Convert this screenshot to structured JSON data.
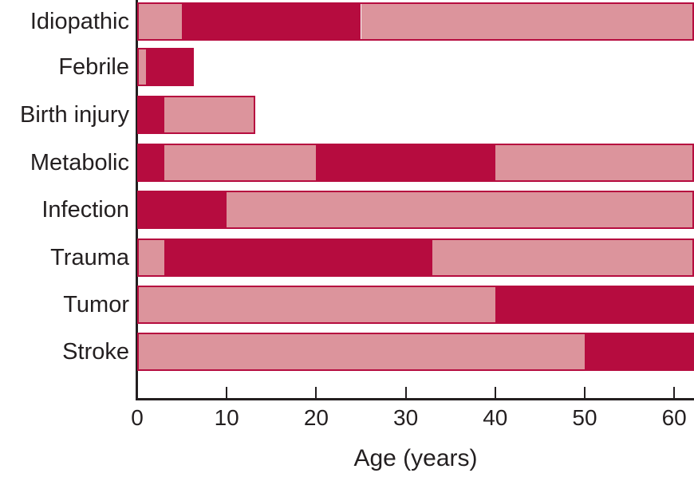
{
  "chart_data": {
    "type": "bar",
    "subtype": "horizontal-stacked-segments",
    "title": "",
    "xlabel": "Age (years)",
    "ylabel": "",
    "xlim": [
      0,
      62.2
    ],
    "xticks": [
      0,
      10,
      20,
      30,
      40,
      50,
      60
    ],
    "grid": false,
    "legend_position": "none",
    "colors": {
      "dark": "#B60C3F",
      "light": "#DC949C",
      "axis": "#231F20",
      "text": "#231F20"
    },
    "categories": [
      "Idiopathic",
      "Febrile",
      "Birth injury",
      "Metabolic",
      "Infection",
      "Trauma",
      "Tumor",
      "Stroke"
    ],
    "bars": [
      {
        "category": "Idiopathic",
        "segments": [
          {
            "from": 0,
            "to": 5,
            "color": "light"
          },
          {
            "from": 5,
            "to": 25,
            "color": "dark"
          },
          {
            "from": 25,
            "to": 62.2,
            "color": "light"
          }
        ]
      },
      {
        "category": "Febrile",
        "segments": [
          {
            "from": 0,
            "to": 1,
            "color": "light"
          },
          {
            "from": 1,
            "to": 6.3,
            "color": "dark"
          }
        ]
      },
      {
        "category": "Birth injury",
        "segments": [
          {
            "from": 0,
            "to": 3,
            "color": "dark"
          },
          {
            "from": 3,
            "to": 13.2,
            "color": "light"
          }
        ]
      },
      {
        "category": "Metabolic",
        "segments": [
          {
            "from": 0,
            "to": 3,
            "color": "dark"
          },
          {
            "from": 3,
            "to": 20,
            "color": "light"
          },
          {
            "from": 20,
            "to": 40,
            "color": "dark"
          },
          {
            "from": 40,
            "to": 62.2,
            "color": "light"
          }
        ]
      },
      {
        "category": "Infection",
        "segments": [
          {
            "from": 0,
            "to": 10,
            "color": "dark"
          },
          {
            "from": 10,
            "to": 62.2,
            "color": "light"
          }
        ]
      },
      {
        "category": "Trauma",
        "segments": [
          {
            "from": 0,
            "to": 3,
            "color": "light"
          },
          {
            "from": 3,
            "to": 33,
            "color": "dark"
          },
          {
            "from": 33,
            "to": 62.2,
            "color": "light"
          }
        ]
      },
      {
        "category": "Tumor",
        "segments": [
          {
            "from": 0,
            "to": 40,
            "color": "light"
          },
          {
            "from": 40,
            "to": 62.2,
            "color": "dark"
          }
        ]
      },
      {
        "category": "Stroke",
        "segments": [
          {
            "from": 0,
            "to": 50,
            "color": "light"
          },
          {
            "from": 50,
            "to": 62.2,
            "color": "dark"
          }
        ]
      }
    ]
  }
}
